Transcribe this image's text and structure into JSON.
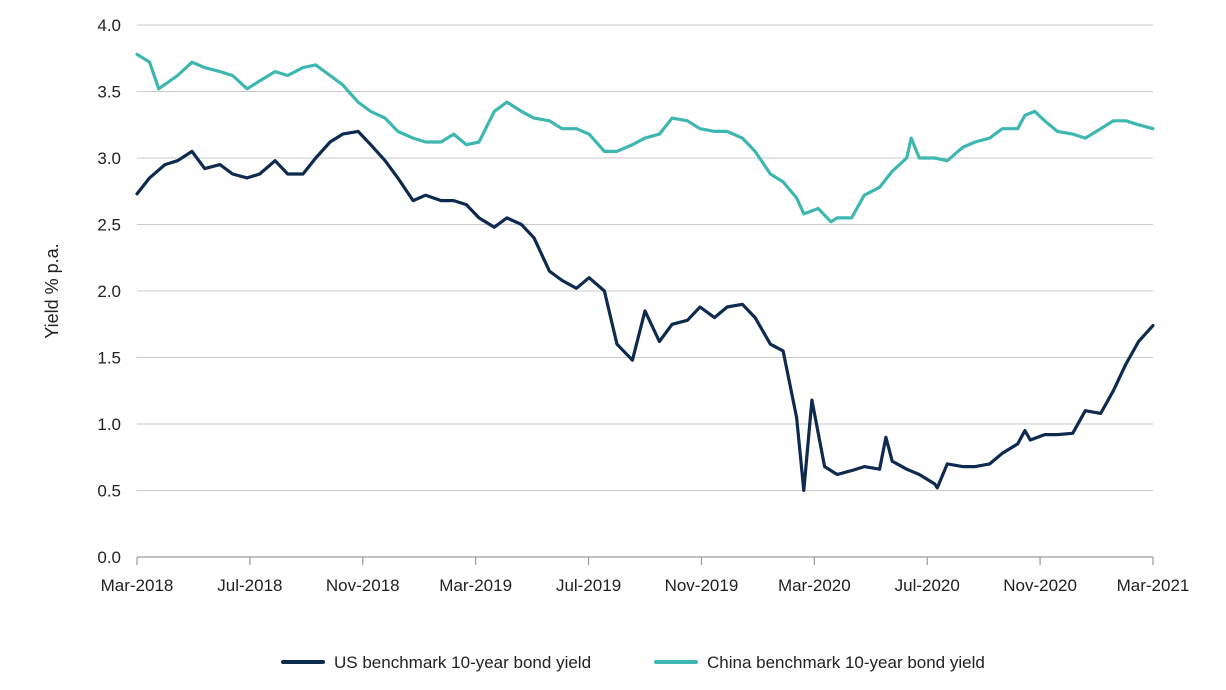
{
  "chart_data": {
    "type": "line",
    "title": "",
    "xlabel": "",
    "ylabel": "Yield % p.a.",
    "ylim": [
      0,
      4
    ],
    "yticks": [
      "0.0",
      "0.5",
      "1.0",
      "1.5",
      "2.0",
      "2.5",
      "3.0",
      "3.5",
      "4.0"
    ],
    "xticks": [
      "Mar-2018",
      "Jul-2018",
      "Nov-2018",
      "Mar-2019",
      "Jul-2019",
      "Nov-2019",
      "Mar-2020",
      "Jul-2020",
      "Nov-2020",
      "Mar-2021"
    ],
    "grid": "horizontal",
    "legend_position": "bottom",
    "series": [
      {
        "name": "US benchmark 10-year bond yield",
        "color": "#0e2a4f",
        "points": [
          [
            "2018-03-01",
            2.73
          ],
          [
            "2018-03-15",
            2.85
          ],
          [
            "2018-04-01",
            2.95
          ],
          [
            "2018-04-15",
            2.98
          ],
          [
            "2018-05-01",
            3.05
          ],
          [
            "2018-05-15",
            2.92
          ],
          [
            "2018-06-01",
            2.95
          ],
          [
            "2018-06-15",
            2.88
          ],
          [
            "2018-07-01",
            2.85
          ],
          [
            "2018-07-15",
            2.88
          ],
          [
            "2018-08-01",
            2.98
          ],
          [
            "2018-08-15",
            2.88
          ],
          [
            "2018-09-01",
            2.88
          ],
          [
            "2018-09-15",
            3.0
          ],
          [
            "2018-10-01",
            3.12
          ],
          [
            "2018-10-15",
            3.18
          ],
          [
            "2018-11-01",
            3.2
          ],
          [
            "2018-11-15",
            3.1
          ],
          [
            "2018-12-01",
            2.98
          ],
          [
            "2018-12-15",
            2.85
          ],
          [
            "2019-01-01",
            2.68
          ],
          [
            "2019-01-15",
            2.72
          ],
          [
            "2019-02-01",
            2.68
          ],
          [
            "2019-02-15",
            2.68
          ],
          [
            "2019-03-01",
            2.65
          ],
          [
            "2019-03-15",
            2.55
          ],
          [
            "2019-04-01",
            2.48
          ],
          [
            "2019-04-15",
            2.55
          ],
          [
            "2019-05-01",
            2.5
          ],
          [
            "2019-05-15",
            2.4
          ],
          [
            "2019-06-01",
            2.15
          ],
          [
            "2019-06-15",
            2.08
          ],
          [
            "2019-07-01",
            2.02
          ],
          [
            "2019-07-15",
            2.1
          ],
          [
            "2019-08-01",
            2.0
          ],
          [
            "2019-08-15",
            1.6
          ],
          [
            "2019-09-01",
            1.48
          ],
          [
            "2019-09-15",
            1.85
          ],
          [
            "2019-10-01",
            1.62
          ],
          [
            "2019-10-15",
            1.75
          ],
          [
            "2019-11-01",
            1.78
          ],
          [
            "2019-11-15",
            1.88
          ],
          [
            "2019-12-01",
            1.8
          ],
          [
            "2019-12-15",
            1.88
          ],
          [
            "2020-01-01",
            1.9
          ],
          [
            "2020-01-15",
            1.8
          ],
          [
            "2020-02-01",
            1.6
          ],
          [
            "2020-02-15",
            1.55
          ],
          [
            "2020-03-01",
            1.05
          ],
          [
            "2020-03-09",
            0.5
          ],
          [
            "2020-03-18",
            1.18
          ],
          [
            "2020-04-01",
            0.68
          ],
          [
            "2020-04-15",
            0.62
          ],
          [
            "2020-05-01",
            0.65
          ],
          [
            "2020-05-15",
            0.68
          ],
          [
            "2020-06-01",
            0.66
          ],
          [
            "2020-06-08",
            0.9
          ],
          [
            "2020-06-15",
            0.72
          ],
          [
            "2020-07-01",
            0.66
          ],
          [
            "2020-07-15",
            0.62
          ],
          [
            "2020-08-01",
            0.55
          ],
          [
            "2020-08-04",
            0.52
          ],
          [
            "2020-08-15",
            0.7
          ],
          [
            "2020-09-01",
            0.68
          ],
          [
            "2020-09-15",
            0.68
          ],
          [
            "2020-10-01",
            0.7
          ],
          [
            "2020-10-15",
            0.78
          ],
          [
            "2020-11-01",
            0.85
          ],
          [
            "2020-11-09",
            0.95
          ],
          [
            "2020-11-15",
            0.88
          ],
          [
            "2020-12-01",
            0.92
          ],
          [
            "2020-12-15",
            0.92
          ],
          [
            "2021-01-01",
            0.93
          ],
          [
            "2021-01-15",
            1.1
          ],
          [
            "2021-02-01",
            1.08
          ],
          [
            "2021-02-15",
            1.25
          ],
          [
            "2021-03-01",
            1.45
          ],
          [
            "2021-03-15",
            1.62
          ],
          [
            "2021-03-31",
            1.74
          ]
        ]
      },
      {
        "name": "China benchmark 10-year bond yield",
        "color": "#3db7b0",
        "points": [
          [
            "2018-03-01",
            3.78
          ],
          [
            "2018-03-15",
            3.72
          ],
          [
            "2018-03-25",
            3.52
          ],
          [
            "2018-04-15",
            3.62
          ],
          [
            "2018-05-01",
            3.72
          ],
          [
            "2018-05-15",
            3.68
          ],
          [
            "2018-06-01",
            3.65
          ],
          [
            "2018-06-15",
            3.62
          ],
          [
            "2018-07-01",
            3.52
          ],
          [
            "2018-07-15",
            3.58
          ],
          [
            "2018-08-01",
            3.65
          ],
          [
            "2018-08-15",
            3.62
          ],
          [
            "2018-09-01",
            3.68
          ],
          [
            "2018-09-15",
            3.7
          ],
          [
            "2018-10-01",
            3.62
          ],
          [
            "2018-10-15",
            3.55
          ],
          [
            "2018-11-01",
            3.42
          ],
          [
            "2018-11-15",
            3.35
          ],
          [
            "2018-12-01",
            3.3
          ],
          [
            "2018-12-15",
            3.2
          ],
          [
            "2019-01-01",
            3.15
          ],
          [
            "2019-01-15",
            3.12
          ],
          [
            "2019-02-01",
            3.12
          ],
          [
            "2019-02-15",
            3.18
          ],
          [
            "2019-03-01",
            3.1
          ],
          [
            "2019-03-15",
            3.12
          ],
          [
            "2019-04-01",
            3.35
          ],
          [
            "2019-04-15",
            3.42
          ],
          [
            "2019-05-01",
            3.35
          ],
          [
            "2019-05-15",
            3.3
          ],
          [
            "2019-06-01",
            3.28
          ],
          [
            "2019-06-15",
            3.22
          ],
          [
            "2019-07-01",
            3.22
          ],
          [
            "2019-07-15",
            3.18
          ],
          [
            "2019-08-01",
            3.05
          ],
          [
            "2019-08-15",
            3.05
          ],
          [
            "2019-09-01",
            3.1
          ],
          [
            "2019-09-15",
            3.15
          ],
          [
            "2019-10-01",
            3.18
          ],
          [
            "2019-10-15",
            3.3
          ],
          [
            "2019-11-01",
            3.28
          ],
          [
            "2019-11-15",
            3.22
          ],
          [
            "2019-12-01",
            3.2
          ],
          [
            "2019-12-15",
            3.2
          ],
          [
            "2020-01-01",
            3.15
          ],
          [
            "2020-01-15",
            3.05
          ],
          [
            "2020-02-01",
            2.88
          ],
          [
            "2020-02-15",
            2.82
          ],
          [
            "2020-03-01",
            2.7
          ],
          [
            "2020-03-09",
            2.58
          ],
          [
            "2020-03-25",
            2.62
          ],
          [
            "2020-04-08",
            2.52
          ],
          [
            "2020-04-15",
            2.55
          ],
          [
            "2020-05-01",
            2.55
          ],
          [
            "2020-05-15",
            2.72
          ],
          [
            "2020-06-01",
            2.78
          ],
          [
            "2020-06-15",
            2.9
          ],
          [
            "2020-07-01",
            3.0
          ],
          [
            "2020-07-06",
            3.15
          ],
          [
            "2020-07-15",
            3.0
          ],
          [
            "2020-08-01",
            3.0
          ],
          [
            "2020-08-15",
            2.98
          ],
          [
            "2020-09-01",
            3.08
          ],
          [
            "2020-09-15",
            3.12
          ],
          [
            "2020-10-01",
            3.15
          ],
          [
            "2020-10-15",
            3.22
          ],
          [
            "2020-11-01",
            3.22
          ],
          [
            "2020-11-09",
            3.32
          ],
          [
            "2020-11-20",
            3.35
          ],
          [
            "2020-12-01",
            3.28
          ],
          [
            "2020-12-15",
            3.2
          ],
          [
            "2021-01-01",
            3.18
          ],
          [
            "2021-01-15",
            3.15
          ],
          [
            "2021-02-01",
            3.22
          ],
          [
            "2021-02-15",
            3.28
          ],
          [
            "2021-03-01",
            3.28
          ],
          [
            "2021-03-15",
            3.25
          ],
          [
            "2021-03-31",
            3.22
          ]
        ]
      }
    ]
  }
}
